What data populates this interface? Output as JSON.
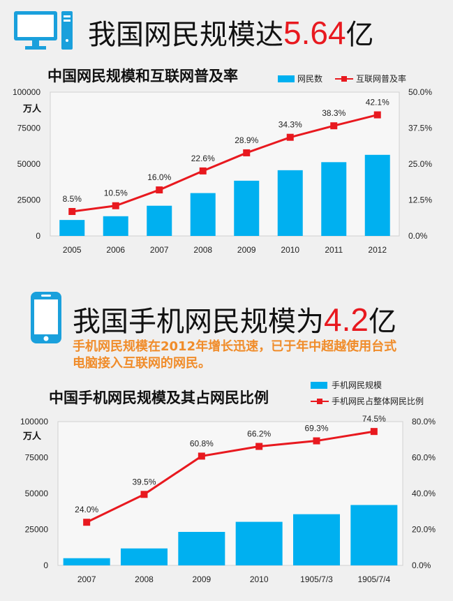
{
  "section1": {
    "heading_prefix": "我国网民规模达",
    "heading_number": "5.64",
    "heading_suffix": "亿",
    "chart_title": "中国网民规模和互联网普及率",
    "unit": "万人",
    "legend_bar": "网民数",
    "legend_line": "互联网普及率"
  },
  "section2": {
    "heading_prefix": "我国手机网民规模为",
    "heading_number": "4.2",
    "heading_suffix": "亿",
    "subtitle": "手机网民规模在2012年增长迅速，已于年中超越使用台式电脑接入互联网的网民。",
    "chart_title": "中国手机网民规模及其占网民比例",
    "unit": "万人",
    "legend_bar": "手机网民规模",
    "legend_line": "手机网民占整体网民比例"
  },
  "colors": {
    "bar": "#00b0f0",
    "line": "#e8191f",
    "icon": "#1aa0dc",
    "number": "#e8191f",
    "subtitle": "#f08c2a"
  },
  "chart_data": [
    {
      "type": "bar+line",
      "title": "中国网民规模和互联网普及率",
      "categories": [
        "2005",
        "2006",
        "2007",
        "2008",
        "2009",
        "2010",
        "2011",
        "2012"
      ],
      "series": [
        {
          "name": "网民数",
          "type": "bar",
          "axis": "left",
          "values": [
            11100,
            13700,
            21000,
            29800,
            38400,
            45700,
            51300,
            56400
          ]
        },
        {
          "name": "互联网普及率",
          "type": "line",
          "axis": "right",
          "values": [
            8.5,
            10.5,
            16.0,
            22.6,
            28.9,
            34.3,
            38.3,
            42.1
          ],
          "labels": [
            "8.5%",
            "10.5%",
            "16.0%",
            "22.6%",
            "28.9%",
            "34.3%",
            "38.3%",
            "42.1%"
          ]
        }
      ],
      "y_left": {
        "min": 0,
        "max": 100000,
        "ticks": [
          "0",
          "25000",
          "50000",
          "75000",
          "100000"
        ]
      },
      "y_right": {
        "min": 0,
        "max": 50,
        "ticks": [
          "0.0%",
          "12.5%",
          "25.0%",
          "37.5%",
          "50.0%"
        ]
      },
      "grid": false,
      "legend": "top-right"
    },
    {
      "type": "bar+line",
      "title": "中国手机网民规模及其占网民比例",
      "categories": [
        "2007",
        "2008",
        "2009",
        "2010",
        "1905/7/3",
        "1905/7/4"
      ],
      "series": [
        {
          "name": "手机网民规模",
          "type": "bar",
          "axis": "left",
          "values": [
            5000,
            11800,
            23300,
            30300,
            35600,
            42000
          ]
        },
        {
          "name": "手机网民占整体网民比例",
          "type": "line",
          "axis": "right",
          "values": [
            24.0,
            39.5,
            60.8,
            66.2,
            69.3,
            74.5
          ],
          "labels": [
            "24.0%",
            "39.5%",
            "60.8%",
            "66.2%",
            "69.3%",
            "74.5%"
          ]
        }
      ],
      "y_left": {
        "min": 0,
        "max": 100000,
        "ticks": [
          "0",
          "25000",
          "50000",
          "75000",
          "100000"
        ]
      },
      "y_right": {
        "min": 0,
        "max": 80,
        "ticks": [
          "0.0%",
          "20.0%",
          "40.0%",
          "60.0%",
          "80.0%"
        ]
      },
      "grid": false,
      "legend": "top-right"
    }
  ]
}
